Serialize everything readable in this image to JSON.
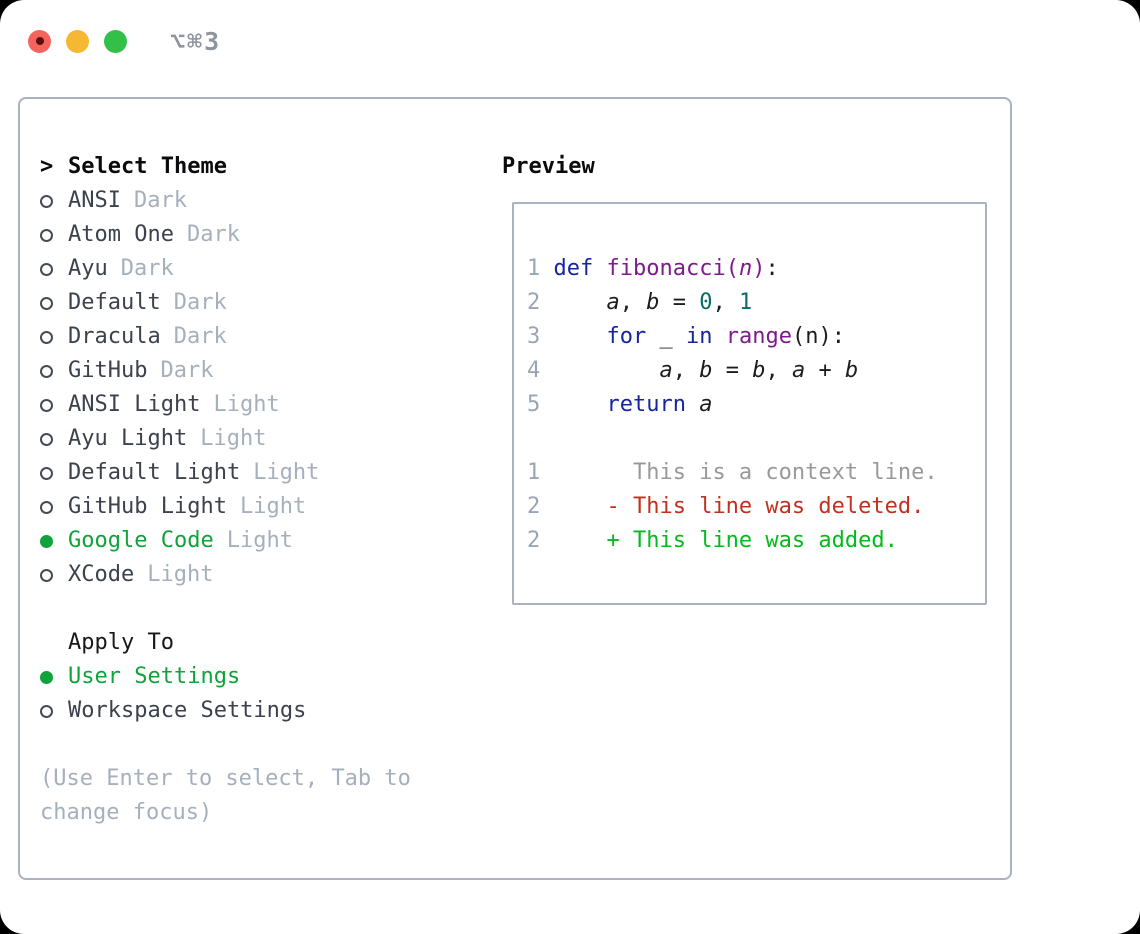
{
  "window": {
    "title": "⌥⌘3",
    "traffic_lights": [
      {
        "name": "close-button",
        "color": "#f4645c"
      },
      {
        "name": "minimize-button",
        "color": "#f5b832"
      },
      {
        "name": "zoom-button",
        "color": "#33c048"
      }
    ]
  },
  "theme_panel": {
    "pointer": ">",
    "title": "Select Theme",
    "themes": [
      {
        "name": "ANSI",
        "variant": "Dark",
        "selected": false
      },
      {
        "name": "Atom One",
        "variant": "Dark",
        "selected": false
      },
      {
        "name": "Ayu",
        "variant": "Dark",
        "selected": false
      },
      {
        "name": "Default",
        "variant": "Dark",
        "selected": false
      },
      {
        "name": "Dracula",
        "variant": "Dark",
        "selected": false
      },
      {
        "name": "GitHub",
        "variant": "Dark",
        "selected": false
      },
      {
        "name": "ANSI Light",
        "variant": "Light",
        "selected": false
      },
      {
        "name": "Ayu Light",
        "variant": "Light",
        "selected": false
      },
      {
        "name": "Default Light",
        "variant": "Light",
        "selected": false
      },
      {
        "name": "GitHub Light",
        "variant": "Light",
        "selected": false
      },
      {
        "name": "Google Code",
        "variant": "Light",
        "selected": true
      },
      {
        "name": "XCode",
        "variant": "Light",
        "selected": false
      }
    ],
    "apply_to": {
      "label": "Apply To",
      "options": [
        {
          "name": "User Settings",
          "selected": true
        },
        {
          "name": "Workspace Settings",
          "selected": false
        }
      ]
    },
    "help_text": "(Use Enter to select, Tab to change focus)"
  },
  "preview": {
    "title": "Preview",
    "lines": [
      {
        "num": "1",
        "tokens": [
          {
            "t": "def",
            "c": "kw"
          },
          {
            "t": " ",
            "c": "pl"
          },
          {
            "t": "fibonacci(",
            "c": "fn"
          },
          {
            "t": "n",
            "c": "fni"
          },
          {
            "t": ")",
            "c": "fn"
          },
          {
            "t": ":",
            "c": "pl"
          }
        ]
      },
      {
        "num": "2",
        "tokens": [
          {
            "t": "    ",
            "c": "pl"
          },
          {
            "t": "a",
            "c": "var"
          },
          {
            "t": ", ",
            "c": "pl"
          },
          {
            "t": "b",
            "c": "var"
          },
          {
            "t": " = ",
            "c": "pl"
          },
          {
            "t": "0",
            "c": "num"
          },
          {
            "t": ", ",
            "c": "pl"
          },
          {
            "t": "1",
            "c": "num"
          }
        ]
      },
      {
        "num": "3",
        "tokens": [
          {
            "t": "    ",
            "c": "pl"
          },
          {
            "t": "for",
            "c": "kw"
          },
          {
            "t": " _ ",
            "c": "pl"
          },
          {
            "t": "in",
            "c": "kw"
          },
          {
            "t": " ",
            "c": "pl"
          },
          {
            "t": "range",
            "c": "fn"
          },
          {
            "t": "(n):",
            "c": "pl"
          }
        ]
      },
      {
        "num": "4",
        "tokens": [
          {
            "t": "        ",
            "c": "pl"
          },
          {
            "t": "a",
            "c": "var"
          },
          {
            "t": ", ",
            "c": "pl"
          },
          {
            "t": "b",
            "c": "var"
          },
          {
            "t": " = ",
            "c": "pl"
          },
          {
            "t": "b",
            "c": "var"
          },
          {
            "t": ", ",
            "c": "pl"
          },
          {
            "t": "a",
            "c": "var"
          },
          {
            "t": " + ",
            "c": "pl"
          },
          {
            "t": "b",
            "c": "var"
          }
        ]
      },
      {
        "num": "5",
        "tokens": [
          {
            "t": "    ",
            "c": "pl"
          },
          {
            "t": "return",
            "c": "kw"
          },
          {
            "t": " ",
            "c": "pl"
          },
          {
            "t": "a",
            "c": "var"
          }
        ]
      },
      {
        "num": "",
        "tokens": []
      },
      {
        "num": "1",
        "tokens": [
          {
            "t": "      This is a context line.",
            "c": "ctx"
          }
        ]
      },
      {
        "num": "2",
        "tokens": [
          {
            "t": "    - This line was deleted.",
            "c": "del"
          }
        ]
      },
      {
        "num": "2",
        "tokens": [
          {
            "t": "    + This line was added.",
            "c": "add"
          }
        ]
      }
    ]
  },
  "colors": {
    "accent_green": "#10a33c",
    "diff_add": "#04ba1d",
    "diff_del": "#c0321f",
    "keyword_blue": "#1525a0",
    "function_purple": "#7d1b8c",
    "number_teal": "#0a6b66",
    "muted_gray": "#a6b0bd",
    "border_gray": "#a9b2bd"
  }
}
